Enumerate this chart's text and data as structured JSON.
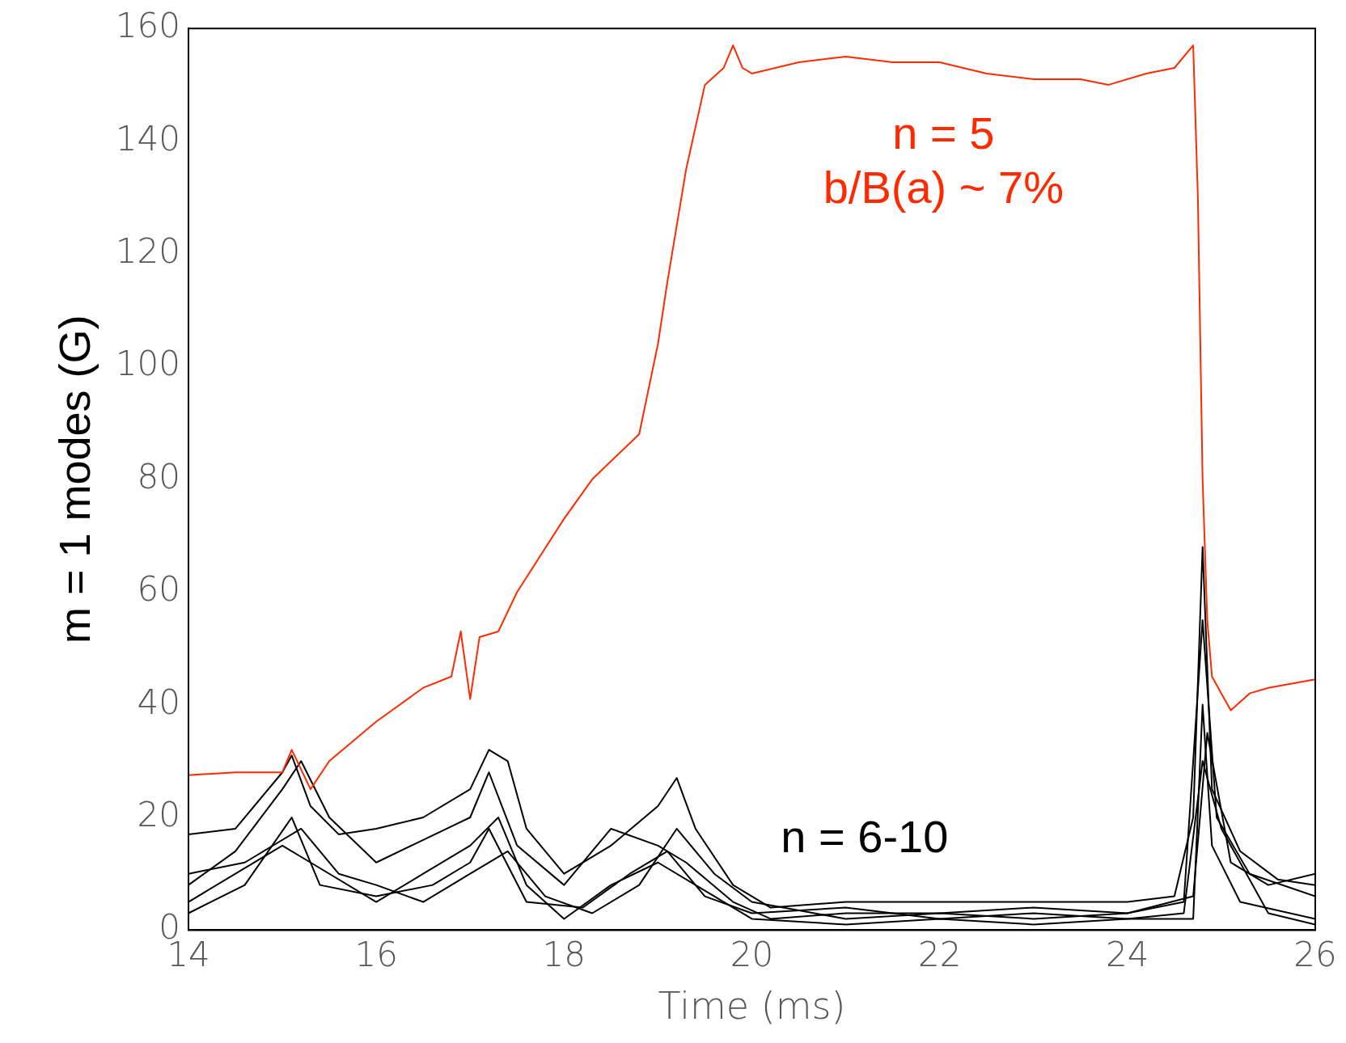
{
  "chart_data": {
    "type": "line",
    "xlabel": "Time (ms)",
    "ylabel": "m = 1 modes (G)",
    "xlim": [
      14,
      26
    ],
    "xticks": [
      14,
      16,
      18,
      20,
      22,
      24,
      26
    ],
    "ylim": [
      0,
      160
    ],
    "yticks": [
      0,
      20,
      40,
      60,
      80,
      100,
      120,
      140,
      160
    ],
    "grid": false,
    "legend": false,
    "marker": "none",
    "line_style": "solid",
    "series": [
      {
        "color": "#ff2a00",
        "x": [
          14,
          14.5,
          15,
          15.1,
          15.3,
          15.5,
          16,
          16.5,
          16.8,
          16.9,
          17,
          17.1,
          17.3,
          17.5,
          18,
          18.3,
          18.8,
          19,
          19.1,
          19.3,
          19.5,
          19.7,
          19.8,
          19.9,
          20,
          20.5,
          21,
          21.5,
          22,
          22.5,
          23,
          23.5,
          23.8,
          24.2,
          24.5,
          24.7,
          24.75,
          24.8,
          24.85,
          24.9,
          25,
          25.1,
          25.3,
          25.5,
          26
        ],
        "values": [
          27.5,
          28,
          28,
          32,
          25,
          30,
          37,
          43,
          45,
          53,
          41,
          52,
          53,
          60,
          73,
          80,
          88,
          104,
          115,
          135,
          150,
          153,
          157,
          153,
          152,
          154,
          155,
          154,
          154,
          152,
          151,
          151,
          150,
          152,
          153,
          157,
          130,
          80,
          55,
          45,
          42,
          39,
          42,
          43,
          44.5
        ]
      },
      {
        "color": "#000000",
        "x": [
          14,
          14.5,
          15,
          15.1,
          15.3,
          15.6,
          16,
          16.5,
          17,
          17.2,
          17.4,
          17.6,
          18,
          18.5,
          19,
          19.2,
          19.4,
          19.8,
          20.2,
          21,
          22,
          23,
          24,
          24.5,
          24.7,
          24.8,
          24.9,
          25.2,
          25.6,
          26
        ],
        "values": [
          17,
          18,
          28,
          31,
          22,
          17,
          18,
          20,
          25,
          32,
          30,
          18,
          10,
          15,
          22,
          27,
          18,
          8,
          4,
          5,
          5,
          5,
          5,
          6,
          20,
          68,
          25,
          14,
          9,
          8
        ]
      },
      {
        "color": "#000000",
        "x": [
          14,
          14.5,
          15,
          15.2,
          15.5,
          16,
          16.5,
          17,
          17.2,
          17.5,
          18,
          18.5,
          19,
          19.3,
          19.8,
          20.2,
          21,
          22,
          23,
          24,
          24.6,
          24.8,
          24.95,
          25.3,
          26
        ],
        "values": [
          8,
          14,
          25,
          30,
          20,
          12,
          16,
          20,
          28,
          15,
          8,
          18,
          15,
          12,
          5,
          2,
          3,
          3,
          4,
          3,
          5,
          55,
          20,
          10,
          6
        ]
      },
      {
        "color": "#000000",
        "x": [
          14,
          14.5,
          15,
          15.3,
          16,
          16.5,
          17,
          17.3,
          17.6,
          18,
          18.5,
          19,
          19.4,
          20,
          21,
          22,
          23,
          24,
          24.7,
          24.8,
          24.9,
          25.2,
          26
        ],
        "values": [
          5,
          10,
          15,
          12,
          5,
          10,
          15,
          20,
          8,
          2,
          8,
          12,
          8,
          2,
          1,
          2,
          1,
          2,
          2,
          40,
          15,
          5,
          2
        ]
      },
      {
        "color": "#000000",
        "x": [
          14,
          14.6,
          15.1,
          15.4,
          16,
          16.6,
          17,
          17.2,
          17.6,
          18.2,
          18.7,
          19.1,
          19.5,
          20,
          21,
          22,
          23,
          24,
          24.6,
          24.8,
          25,
          25.5,
          26
        ],
        "values": [
          3,
          8,
          20,
          8,
          6,
          8,
          12,
          18,
          5,
          4,
          10,
          14,
          6,
          3,
          4,
          2,
          3,
          2,
          3,
          30,
          18,
          3,
          1
        ]
      },
      {
        "color": "#000000",
        "x": [
          14,
          14.6,
          15.2,
          15.6,
          16,
          16.5,
          17,
          17.4,
          17.8,
          18.3,
          18.8,
          19.2,
          19.6,
          20,
          21,
          22,
          23,
          24,
          24.7,
          24.85,
          25.1,
          25.5,
          26
        ],
        "values": [
          10,
          12,
          18,
          10,
          8,
          5,
          10,
          14,
          6,
          3,
          8,
          18,
          10,
          5,
          2,
          3,
          2,
          3,
          6,
          35,
          12,
          8,
          10
        ]
      }
    ],
    "annotations": [
      "n = 5",
      "b/B(a) ~ 7%",
      "n = 6-10"
    ]
  }
}
